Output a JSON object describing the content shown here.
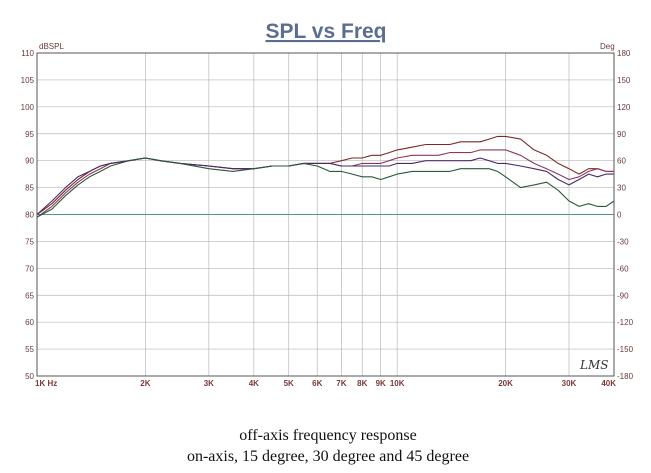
{
  "chart_data": {
    "type": "line",
    "title": "SPL vs Freq",
    "ylabel": "dBSPL",
    "y2label": "Deg",
    "xscale": "log",
    "xlim": [
      1000,
      40000
    ],
    "ylim": [
      50,
      110
    ],
    "y2lim": [
      -180,
      180
    ],
    "grid": true,
    "yticks": [
      "50",
      "55",
      "60",
      "65",
      "70",
      "75",
      "80",
      "85",
      "90",
      "95",
      "100",
      "105",
      "110"
    ],
    "y2ticks": [
      "-180",
      "-150",
      "-120",
      "-90",
      "-60",
      "-30",
      "0",
      "30",
      "60",
      "90",
      "120",
      "150",
      "180"
    ],
    "xticks": [
      {
        "v": 1000,
        "label": "1K Hz"
      },
      {
        "v": 2000,
        "label": "2K"
      },
      {
        "v": 3000,
        "label": "3K"
      },
      {
        "v": 4000,
        "label": "4K"
      },
      {
        "v": 5000,
        "label": "5K"
      },
      {
        "v": 6000,
        "label": "6K"
      },
      {
        "v": 7000,
        "label": "7K"
      },
      {
        "v": 8000,
        "label": "8K"
      },
      {
        "v": 9000,
        "label": "9K"
      },
      {
        "v": 10000,
        "label": "10K"
      },
      {
        "v": 20000,
        "label": "20K"
      },
      {
        "v": 30000,
        "label": "30K"
      },
      {
        "v": 40000,
        "label": "40K"
      }
    ],
    "zero_phase_line": 0,
    "series": [
      {
        "color": "#7a2a2a",
        "x": [
          1000,
          1100,
          1200,
          1300,
          1400,
          1500,
          1600,
          1800,
          2000,
          2200,
          2500,
          3000,
          3500,
          4000,
          4500,
          5000,
          5500,
          6000,
          6500,
          7000,
          7500,
          8000,
          8500,
          9000,
          9500,
          10000,
          11000,
          12000,
          13000,
          14000,
          15000,
          16000,
          17000,
          18000,
          19000,
          20000,
          22000,
          24000,
          26000,
          28000,
          30000,
          32000,
          34000,
          36000,
          38000,
          40000
        ],
        "values": [
          80.0,
          82.0,
          84.5,
          86.5,
          88.0,
          89.0,
          89.5,
          90.0,
          90.5,
          90.0,
          89.5,
          89.0,
          88.5,
          88.5,
          89.0,
          89.0,
          89.5,
          89.5,
          89.5,
          90.0,
          90.5,
          90.5,
          91.0,
          91.0,
          91.5,
          92.0,
          92.5,
          93.0,
          93.0,
          93.0,
          93.5,
          93.5,
          93.5,
          94.0,
          94.5,
          94.5,
          94.0,
          92.0,
          91.0,
          89.5,
          88.5,
          87.5,
          88.5,
          88.5,
          88.0,
          88.0
        ]
      },
      {
        "color": "#8a3a5a",
        "x": [
          1000,
          1100,
          1200,
          1300,
          1400,
          1500,
          1600,
          1800,
          2000,
          2200,
          2500,
          3000,
          3500,
          4000,
          4500,
          5000,
          5500,
          6000,
          6500,
          7000,
          7500,
          8000,
          8500,
          9000,
          9500,
          10000,
          11000,
          12000,
          13000,
          14000,
          15000,
          16000,
          17000,
          18000,
          19000,
          20000,
          22000,
          24000,
          26000,
          28000,
          30000,
          32000,
          34000,
          36000,
          38000,
          40000
        ],
        "values": [
          79.5,
          81.5,
          84.0,
          86.0,
          87.5,
          88.5,
          89.5,
          90.0,
          90.5,
          90.0,
          89.5,
          89.0,
          88.5,
          88.5,
          89.0,
          89.0,
          89.5,
          89.5,
          89.5,
          89.0,
          89.0,
          89.5,
          89.5,
          89.5,
          90.0,
          90.5,
          91.0,
          91.0,
          91.0,
          91.5,
          91.5,
          91.5,
          92.0,
          92.0,
          92.0,
          92.0,
          91.0,
          89.5,
          88.5,
          87.5,
          86.5,
          87.0,
          88.0,
          88.5,
          88.0,
          88.0
        ]
      },
      {
        "color": "#4a2a6a",
        "x": [
          1000,
          1100,
          1200,
          1300,
          1400,
          1500,
          1600,
          1800,
          2000,
          2200,
          2500,
          3000,
          3500,
          4000,
          4500,
          5000,
          5500,
          6000,
          6500,
          7000,
          7500,
          8000,
          8500,
          9000,
          9500,
          10000,
          11000,
          12000,
          13000,
          14000,
          15000,
          16000,
          17000,
          18000,
          19000,
          20000,
          22000,
          24000,
          26000,
          28000,
          30000,
          32000,
          34000,
          36000,
          38000,
          40000
        ],
        "values": [
          80.0,
          82.5,
          85.0,
          87.0,
          88.0,
          89.0,
          89.5,
          90.0,
          90.5,
          90.0,
          89.5,
          89.0,
          88.5,
          88.5,
          89.0,
          89.0,
          89.5,
          89.5,
          89.5,
          89.0,
          89.0,
          89.0,
          89.0,
          89.0,
          89.0,
          89.5,
          89.5,
          90.0,
          90.0,
          90.0,
          90.0,
          90.0,
          90.5,
          90.0,
          89.5,
          89.5,
          89.0,
          88.5,
          88.0,
          86.5,
          85.5,
          86.5,
          87.5,
          87.0,
          87.5,
          87.5
        ]
      },
      {
        "color": "#2a5a3a",
        "x": [
          1000,
          1100,
          1200,
          1300,
          1400,
          1500,
          1600,
          1800,
          2000,
          2200,
          2500,
          3000,
          3500,
          4000,
          4500,
          5000,
          5500,
          6000,
          6500,
          7000,
          7500,
          8000,
          8500,
          9000,
          9500,
          10000,
          11000,
          12000,
          13000,
          14000,
          15000,
          16000,
          17000,
          18000,
          19000,
          20000,
          22000,
          24000,
          26000,
          28000,
          30000,
          32000,
          34000,
          36000,
          38000,
          40000
        ],
        "values": [
          79.5,
          81.0,
          83.5,
          85.5,
          87.0,
          88.0,
          89.0,
          90.0,
          90.5,
          90.0,
          89.5,
          88.5,
          88.0,
          88.5,
          89.0,
          89.0,
          89.5,
          89.0,
          88.0,
          88.0,
          87.5,
          87.0,
          87.0,
          86.5,
          87.0,
          87.5,
          88.0,
          88.0,
          88.0,
          88.0,
          88.5,
          88.5,
          88.5,
          88.5,
          88.0,
          87.0,
          85.0,
          85.5,
          86.0,
          84.5,
          82.5,
          81.5,
          82.0,
          81.5,
          81.5,
          82.5
        ]
      }
    ]
  },
  "logo_text": "LMS",
  "caption": {
    "line1": "off-axis frequency response",
    "line2": "on-axis, 15 degree, 30 degree and 45 degree"
  }
}
